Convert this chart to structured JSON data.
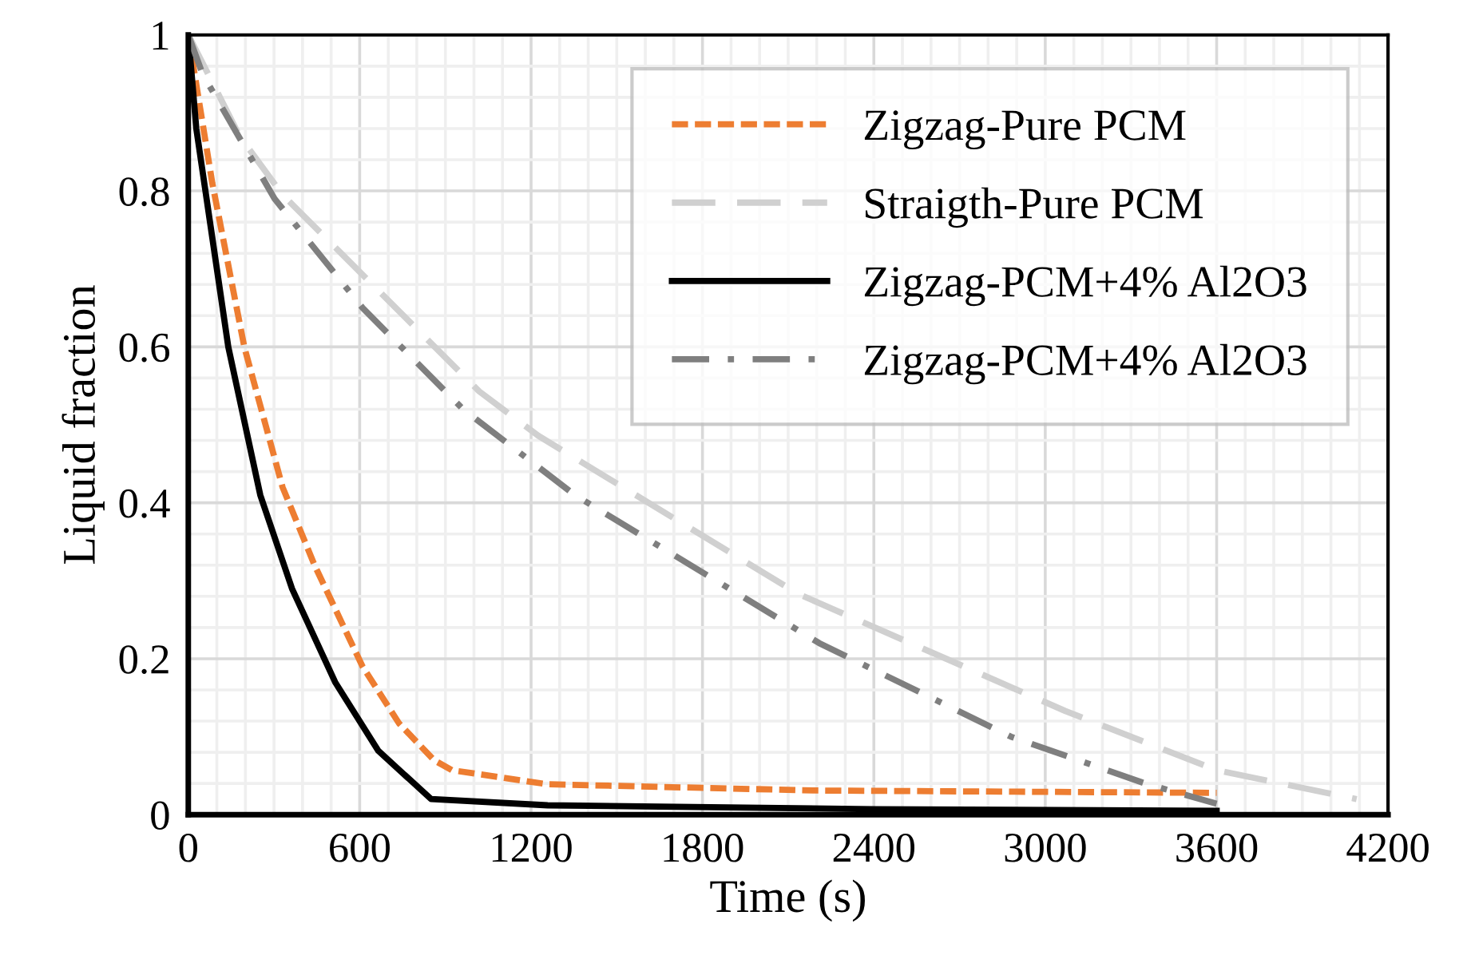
{
  "chart_data": {
    "type": "line",
    "xlabel": "Time (s)",
    "ylabel": "Liquid fraction",
    "xlim": [
      0,
      4200
    ],
    "xticks": [
      0,
      600,
      1200,
      1800,
      2400,
      3000,
      3600,
      4200
    ],
    "ylim": [
      0,
      1
    ],
    "yticks": [
      0,
      0.2,
      0.4,
      0.6,
      0.8,
      1
    ],
    "grid": true,
    "legend": "top right",
    "marker": "none",
    "series": [
      {
        "name": "Zigzag-Pure PCM",
        "color": "#ed7d31",
        "line_style": "dotted",
        "x": [
          0,
          84,
          196,
          330,
          442,
          610,
          738,
          860,
          923,
          1258,
          2192,
          3600
        ],
        "values": [
          1,
          0.81,
          0.6,
          0.42,
          0.32,
          0.19,
          0.117,
          0.07,
          0.057,
          0.039,
          0.031,
          0.028
        ]
      },
      {
        "name": "Straigth-Pure PCM",
        "color": "#d0d0d0",
        "line_style": "dashed",
        "x": [
          0,
          180,
          330,
          1018,
          1225,
          2136,
          3070,
          3600,
          4090
        ],
        "values": [
          1,
          0.87,
          0.795,
          0.543,
          0.486,
          0.283,
          0.133,
          0.057,
          0.02
        ]
      },
      {
        "name": "Zigzag-PCM+4% Al2O3",
        "color": "#000000",
        "line_style": "solid",
        "x": [
          0,
          28,
          84,
          140,
          252,
          363,
          514,
          665,
          850,
          1258,
          2400,
          3600
        ],
        "values": [
          1,
          0.88,
          0.74,
          0.6,
          0.41,
          0.29,
          0.17,
          0.082,
          0.02,
          0.012,
          0.007,
          0.005
        ]
      },
      {
        "name": "Zigzag-PCM+4% Al2O3",
        "color": "#7f7f7f",
        "line_style": "dashdot",
        "x": [
          0,
          50,
          302,
          610,
          962,
          1353,
          2209,
          2880,
          3350,
          3600
        ],
        "values": [
          1,
          0.95,
          0.79,
          0.65,
          0.52,
          0.41,
          0.22,
          0.1,
          0.04,
          0.014
        ]
      }
    ]
  }
}
